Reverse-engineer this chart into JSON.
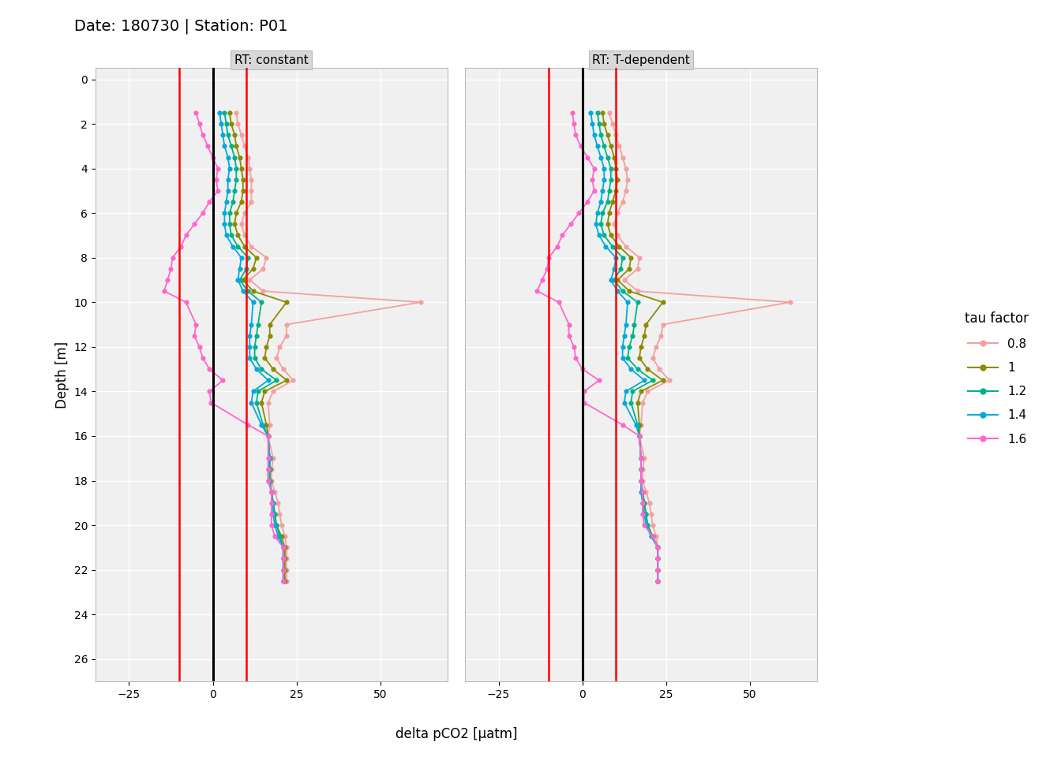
{
  "title": "Date: 180730 | Station: P01",
  "panel_titles": [
    "RT: constant",
    "RT: T-dependent"
  ],
  "xlabel": "delta pCO2 [μatm]",
  "ylabel": "Depth [m]",
  "xlim": [
    -35,
    70
  ],
  "xticks": [
    -25,
    0,
    25,
    50
  ],
  "ylim": [
    27,
    -0.5
  ],
  "yticks": [
    0,
    2,
    4,
    6,
    8,
    10,
    12,
    14,
    16,
    18,
    20,
    22,
    24,
    26
  ],
  "vline_black": 0,
  "vlines_red": [
    -10,
    10
  ],
  "tau_factors": [
    "0.8",
    "1",
    "1.2",
    "1.4",
    "1.6"
  ],
  "colors": {
    "0.8": "#F4A0A0",
    "1": "#8B8B00",
    "1.2": "#00B386",
    "1.4": "#00AADD",
    "1.6": "#FF66CC"
  },
  "depths_const": [
    1.5,
    2.0,
    2.5,
    3.0,
    3.5,
    4.0,
    4.5,
    5.0,
    5.5,
    6.0,
    6.5,
    7.0,
    7.5,
    8.0,
    8.5,
    9.0,
    9.5,
    10.0,
    11.0,
    11.5,
    12.0,
    12.5,
    13.0,
    13.5,
    14.0,
    14.5,
    15.5,
    16.0,
    17.0,
    17.5,
    18.0,
    18.5,
    19.0,
    19.5,
    20.0,
    20.5,
    21.0,
    21.5,
    22.0,
    22.5
  ],
  "constant": {
    "0.8": [
      7.0,
      7.5,
      8.5,
      9.5,
      10.5,
      11.0,
      11.5,
      11.5,
      11.5,
      9.5,
      8.5,
      9.5,
      11.5,
      16.0,
      15.0,
      11.0,
      15.0,
      62.0,
      22.0,
      22.0,
      20.0,
      19.0,
      21.0,
      24.0,
      18.0,
      16.5,
      17.0,
      16.5,
      18.0,
      17.5,
      17.5,
      18.5,
      19.5,
      20.0,
      20.5,
      21.5,
      22.0,
      22.0,
      22.0,
      22.0
    ],
    "1": [
      5.0,
      5.5,
      6.5,
      7.0,
      8.0,
      8.5,
      9.0,
      9.0,
      8.5,
      7.0,
      6.5,
      7.5,
      9.5,
      13.0,
      12.0,
      9.0,
      12.0,
      22.0,
      17.0,
      17.0,
      16.0,
      15.5,
      18.0,
      22.0,
      15.5,
      14.5,
      16.0,
      16.5,
      17.0,
      17.0,
      17.0,
      17.5,
      18.0,
      18.5,
      19.0,
      20.5,
      21.5,
      21.5,
      21.5,
      21.5
    ],
    "1.2": [
      3.5,
      4.0,
      4.5,
      5.5,
      6.5,
      7.0,
      7.0,
      6.5,
      6.0,
      5.0,
      5.0,
      5.5,
      7.5,
      10.5,
      10.0,
      8.0,
      10.5,
      14.5,
      13.5,
      13.0,
      12.5,
      12.5,
      14.5,
      19.0,
      13.5,
      13.0,
      15.0,
      16.5,
      17.0,
      17.0,
      17.0,
      17.5,
      18.0,
      18.5,
      19.0,
      20.0,
      21.0,
      21.0,
      21.0,
      21.0
    ],
    "1.4": [
      2.0,
      2.5,
      3.0,
      3.5,
      4.5,
      5.0,
      4.5,
      4.5,
      4.0,
      3.5,
      3.5,
      4.0,
      6.0,
      8.5,
      8.0,
      7.5,
      9.0,
      12.0,
      11.5,
      11.0,
      11.0,
      11.0,
      13.0,
      16.5,
      12.0,
      11.5,
      14.5,
      16.5,
      17.0,
      16.5,
      16.5,
      17.5,
      18.0,
      18.0,
      18.5,
      19.5,
      21.0,
      21.0,
      21.0,
      21.0
    ],
    "1.6": [
      -5.0,
      -4.0,
      -3.0,
      -1.5,
      0.0,
      1.5,
      1.0,
      1.5,
      -1.0,
      -3.0,
      -5.5,
      -8.0,
      -9.5,
      -12.0,
      -12.5,
      -13.5,
      -14.5,
      -8.0,
      -5.0,
      -5.5,
      -4.0,
      -3.0,
      -1.0,
      3.0,
      -1.0,
      -0.5,
      10.5,
      16.5,
      16.5,
      16.5,
      16.5,
      17.5,
      17.5,
      17.5,
      17.5,
      18.5,
      21.0,
      21.0,
      21.0,
      21.0
    ]
  },
  "depths_tdep": [
    1.5,
    2.0,
    2.5,
    3.0,
    3.5,
    4.0,
    4.5,
    5.0,
    5.5,
    6.0,
    6.5,
    7.0,
    7.5,
    8.0,
    8.5,
    9.0,
    9.5,
    10.0,
    11.0,
    11.5,
    12.0,
    12.5,
    13.0,
    13.5,
    14.0,
    14.5,
    15.5,
    16.0,
    17.0,
    17.5,
    18.0,
    18.5,
    19.0,
    19.5,
    20.0,
    20.5,
    21.0,
    21.5,
    22.0,
    22.5
  ],
  "t_dependent": {
    "0.8": [
      8.0,
      9.0,
      10.0,
      11.0,
      12.0,
      13.0,
      13.5,
      13.0,
      12.0,
      10.5,
      9.5,
      10.5,
      13.0,
      17.0,
      16.5,
      12.5,
      16.5,
      62.0,
      24.0,
      23.5,
      22.0,
      21.0,
      23.0,
      26.0,
      19.5,
      18.0,
      17.5,
      17.0,
      18.5,
      18.0,
      18.0,
      19.0,
      20.0,
      20.5,
      21.0,
      22.0,
      22.5,
      22.5,
      22.5,
      22.5
    ],
    "1": [
      6.0,
      6.5,
      7.5,
      8.5,
      9.5,
      10.0,
      10.5,
      10.0,
      9.0,
      8.0,
      7.5,
      8.5,
      11.0,
      14.5,
      14.0,
      10.5,
      14.0,
      24.0,
      19.0,
      18.5,
      17.5,
      17.0,
      19.5,
      24.0,
      17.5,
      16.5,
      17.0,
      17.0,
      17.5,
      17.5,
      17.5,
      18.0,
      18.5,
      19.0,
      19.5,
      21.0,
      22.5,
      22.5,
      22.5,
      22.5
    ],
    "1.2": [
      4.5,
      5.0,
      5.5,
      6.5,
      7.5,
      8.5,
      8.5,
      8.0,
      7.5,
      6.0,
      5.5,
      6.5,
      9.0,
      12.0,
      11.5,
      9.5,
      12.0,
      16.5,
      15.5,
      15.0,
      14.0,
      13.5,
      16.5,
      21.0,
      15.0,
      14.5,
      16.5,
      17.0,
      17.5,
      17.5,
      17.5,
      18.0,
      18.5,
      19.0,
      19.5,
      21.0,
      22.5,
      22.5,
      22.5,
      22.5
    ],
    "1.4": [
      2.5,
      3.0,
      3.5,
      4.5,
      5.5,
      6.5,
      6.5,
      6.0,
      5.5,
      4.5,
      4.0,
      5.0,
      7.0,
      10.0,
      9.5,
      8.5,
      10.5,
      13.5,
      13.0,
      12.5,
      12.0,
      12.0,
      14.5,
      18.5,
      13.0,
      12.5,
      16.0,
      17.0,
      17.5,
      17.5,
      17.5,
      17.5,
      18.0,
      18.5,
      19.0,
      20.5,
      22.5,
      22.5,
      22.5,
      22.5
    ],
    "1.6": [
      -3.0,
      -2.5,
      -2.0,
      -0.5,
      1.5,
      3.5,
      3.0,
      3.5,
      1.5,
      -1.0,
      -3.5,
      -6.0,
      -7.5,
      -10.0,
      -10.5,
      -12.0,
      -13.5,
      -7.0,
      -4.0,
      -4.0,
      -2.5,
      -2.0,
      0.0,
      5.0,
      0.5,
      0.5,
      12.0,
      17.0,
      17.5,
      17.5,
      17.5,
      18.0,
      18.0,
      18.0,
      18.5,
      21.0,
      22.5,
      22.5,
      22.5,
      22.5
    ]
  },
  "background_color": "#FFFFFF",
  "panel_bg": "#F0F0F0",
  "grid_color": "#FFFFFF",
  "legend_title": "tau factor"
}
